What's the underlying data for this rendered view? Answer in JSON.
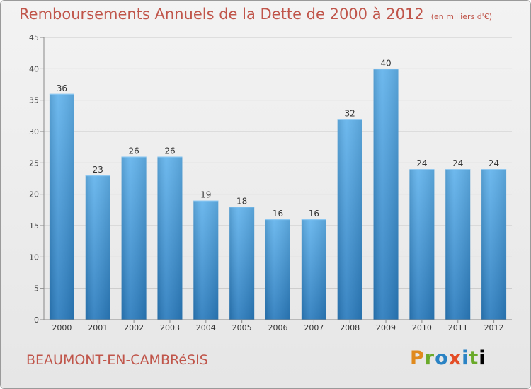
{
  "title": "Remboursements Annuels de la Dette de 2000 à 2012",
  "subtitle": "(en milliers d'€)",
  "commune": "BEAUMONT-EN-CAMBRéSIS",
  "logo_text": "Proxiti",
  "colors": {
    "title": "#c0554a",
    "bar_light": "#5fb0ea",
    "bar_dark": "#2a7fc0",
    "grid": "#c8c8c8"
  },
  "chart_data": {
    "type": "bar",
    "categories": [
      "2000",
      "2001",
      "2002",
      "2003",
      "2004",
      "2005",
      "2006",
      "2007",
      "2008",
      "2009",
      "2010",
      "2011",
      "2012"
    ],
    "values": [
      36,
      23,
      26,
      26,
      19,
      18,
      16,
      16,
      32,
      40,
      24,
      24,
      24
    ],
    "ylim": [
      0,
      45
    ],
    "yticks": [
      0,
      5,
      10,
      15,
      20,
      25,
      30,
      35,
      40,
      45
    ],
    "grid": true,
    "data_labels": true
  }
}
